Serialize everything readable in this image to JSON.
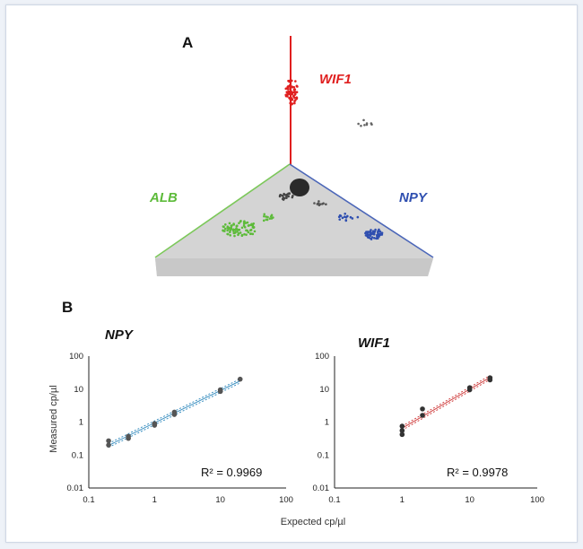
{
  "panel_a": {
    "label": "A",
    "axes": [
      {
        "name": "WIF1",
        "color": "#e01f1f"
      },
      {
        "name": "ALB",
        "color": "#5dbb3a"
      },
      {
        "name": "NPY",
        "color": "#2f4fb0"
      }
    ]
  },
  "panel_b": {
    "label": "B",
    "shared_xlabel": "Expected cp/µl",
    "shared_ylabel": "Measured cp/µl"
  },
  "chart_data": [
    {
      "type": "scatter",
      "title": "NPY",
      "xlabel": "Expected cp/µl",
      "ylabel": "Measured cp/µl",
      "xscale": "log",
      "yscale": "log",
      "xlim": [
        0.1,
        100
      ],
      "ylim": [
        0.01,
        100
      ],
      "x_ticks": [
        "0.1",
        "1",
        "10",
        "100"
      ],
      "y_ticks": [
        "100",
        "10",
        "1",
        "0.1",
        "0.01"
      ],
      "annotation": "R² = 0.9969",
      "marker_color": "#555555",
      "fit_color": "#3a8fc0",
      "points": [
        {
          "x": 0.2,
          "y": 0.27
        },
        {
          "x": 0.2,
          "y": 0.2
        },
        {
          "x": 0.4,
          "y": 0.37
        },
        {
          "x": 0.4,
          "y": 0.32
        },
        {
          "x": 1,
          "y": 0.9
        },
        {
          "x": 1,
          "y": 0.8
        },
        {
          "x": 2,
          "y": 2.0
        },
        {
          "x": 2,
          "y": 1.7
        },
        {
          "x": 10,
          "y": 9.5
        },
        {
          "x": 10,
          "y": 8.5
        },
        {
          "x": 20,
          "y": 20
        }
      ]
    },
    {
      "type": "scatter",
      "title": "WIF1",
      "xscale": "log",
      "yscale": "log",
      "xlim": [
        0.1,
        100
      ],
      "ylim": [
        0.01,
        100
      ],
      "x_ticks": [
        "0.1",
        "1",
        "10",
        "100"
      ],
      "y_ticks": [
        "100",
        "10",
        "1",
        "0.1",
        "0.01"
      ],
      "annotation": "R² = 0.9978",
      "marker_color": "#333333",
      "fit_color": "#d04040",
      "points": [
        {
          "x": 1,
          "y": 0.75
        },
        {
          "x": 1,
          "y": 0.55
        },
        {
          "x": 1,
          "y": 0.42
        },
        {
          "x": 2,
          "y": 2.5
        },
        {
          "x": 2,
          "y": 1.6
        },
        {
          "x": 10,
          "y": 11
        },
        {
          "x": 10,
          "y": 9.5
        },
        {
          "x": 20,
          "y": 22
        },
        {
          "x": 20,
          "y": 19
        }
      ]
    }
  ]
}
